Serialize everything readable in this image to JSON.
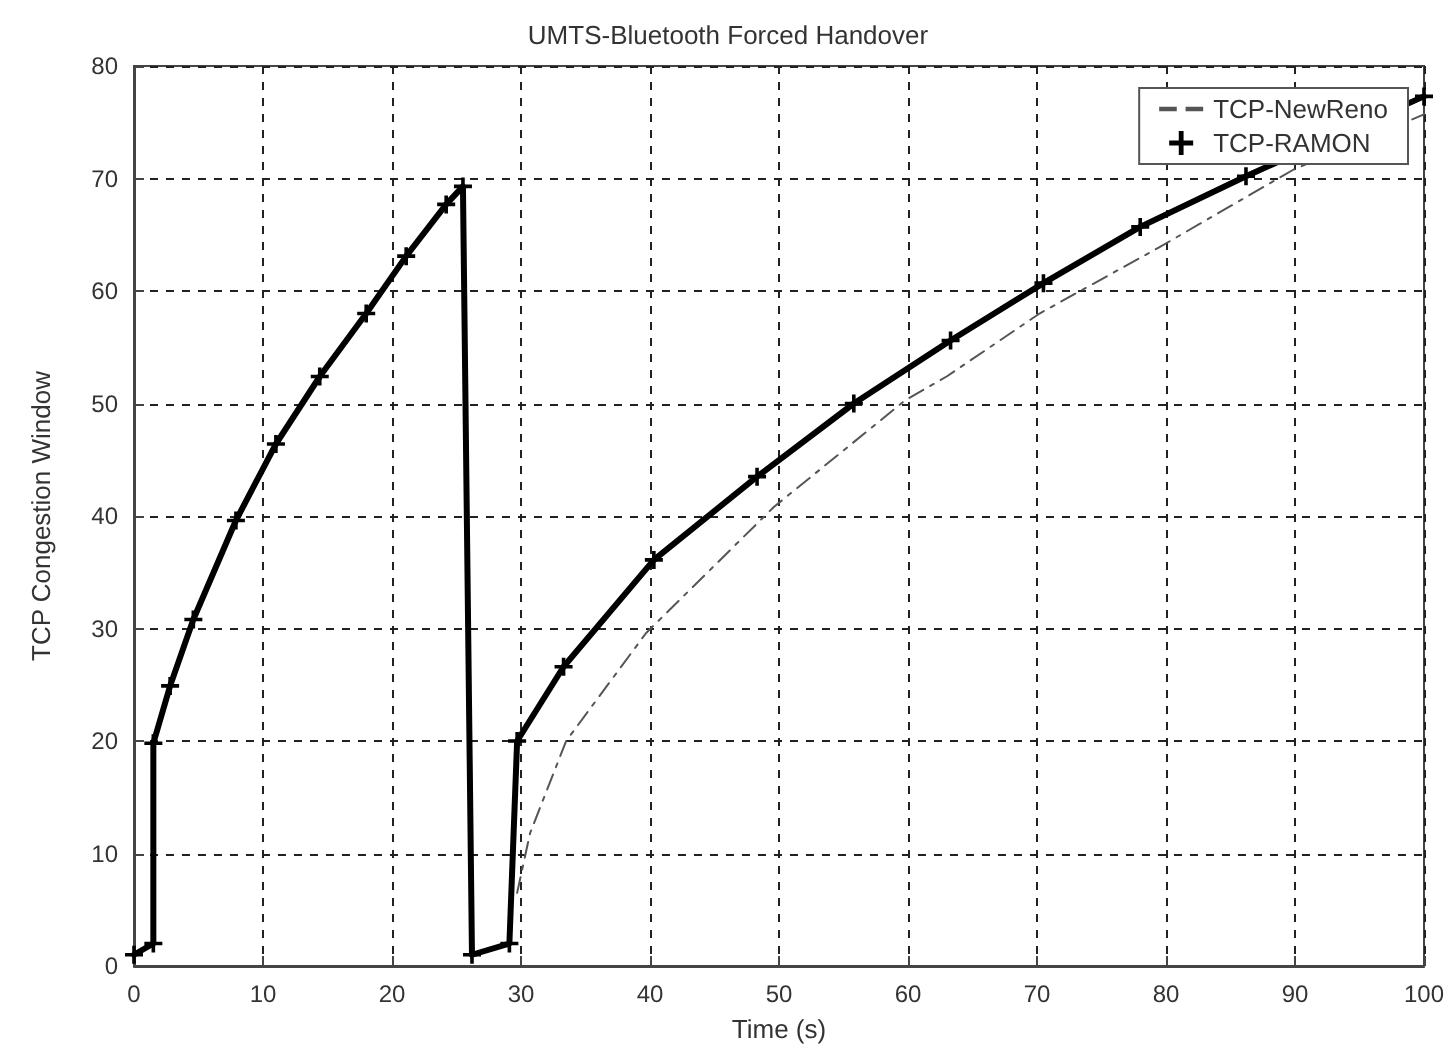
{
  "chart_data": {
    "type": "line",
    "title": "UMTS-Bluetooth Forced Handover",
    "xlabel": "Time (s)",
    "ylabel": "TCP Congestion Window",
    "xlim": [
      0,
      100
    ],
    "xticks": [
      0,
      10,
      20,
      30,
      40,
      50,
      60,
      70,
      80,
      90,
      100
    ],
    "ylim": [
      0,
      80
    ],
    "yticks": [
      0,
      10,
      20,
      30,
      40,
      50,
      60,
      70,
      80
    ],
    "grid": true,
    "legend": "top right",
    "series": [
      {
        "name": "TCP-NewReno",
        "color": "#555555",
        "line_style": "dashed",
        "marker": "none",
        "x": [
          29.7,
          30.7,
          33.5,
          39.7,
          49.6,
          59.8,
          63,
          70.2,
          79.5,
          89.9,
          100
        ],
        "values": [
          6.5,
          11.8,
          20,
          29.6,
          40.8,
          50.3,
          52.4,
          58,
          63.9,
          70.8,
          75.7
        ]
      },
      {
        "name": "TCP-RAMON",
        "color": "#000000",
        "line_style": "solid",
        "marker": "cross",
        "x": [
          0,
          1.5,
          1.5,
          2.8,
          4.6,
          7.9,
          11,
          14.4,
          18,
          21.1,
          24.2,
          25.5,
          26.2,
          29.1,
          29.7,
          33.3,
          40.3,
          48.3,
          55.8,
          63.3,
          70.5,
          78,
          86.2,
          100
        ],
        "values": [
          1,
          2,
          19.8,
          24.9,
          30.8,
          39.6,
          46.4,
          52.4,
          58,
          63.1,
          67.7,
          69.3,
          1,
          2,
          20,
          26.6,
          36.1,
          43.5,
          50,
          55.6,
          60.7,
          65.7,
          70.2,
          77.3
        ]
      }
    ]
  }
}
